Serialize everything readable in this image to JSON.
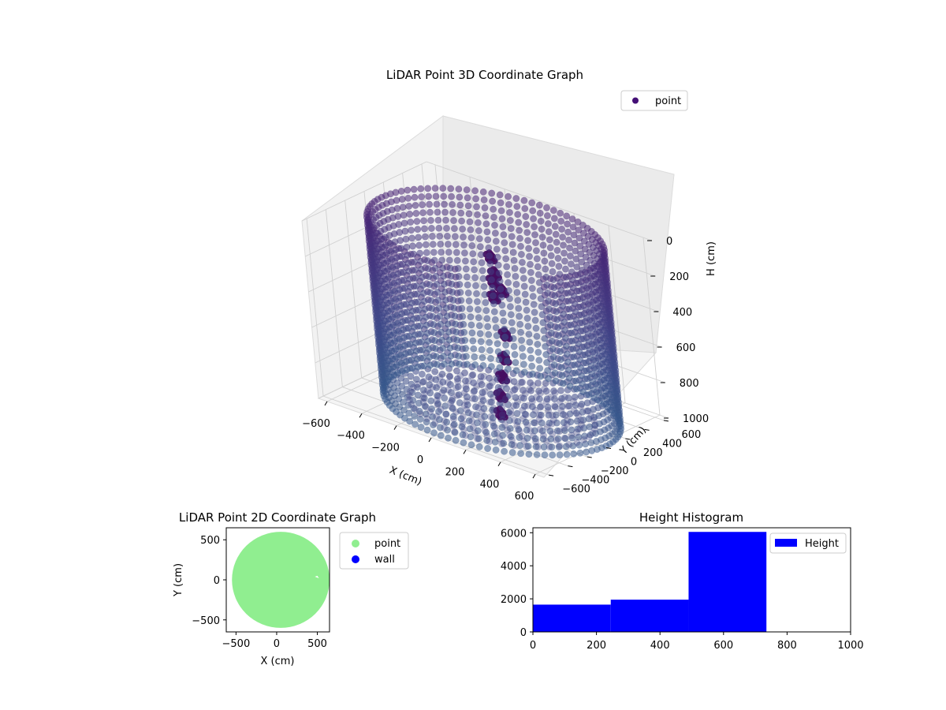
{
  "chart_data": [
    {
      "type": "scatter3d",
      "title": "LiDAR Point 3D Coordinate Graph",
      "xlabel": "X (cm)",
      "ylabel": "Y (cm)",
      "zlabel": "H (cm)",
      "xlim": [
        -650,
        650
      ],
      "ylim": [
        -650,
        650
      ],
      "zlim": [
        0,
        1000
      ],
      "z_inverted": true,
      "x_ticks": [
        -600,
        -400,
        -200,
        0,
        200,
        400,
        600
      ],
      "y_ticks": [
        -600,
        -400,
        -200,
        0,
        200,
        400,
        600
      ],
      "z_ticks": [
        0,
        200,
        400,
        600,
        800,
        1000
      ],
      "x_tick_labels": [
        "−600",
        "−400",
        "−200",
        "0",
        "200",
        "400",
        "600"
      ],
      "y_tick_labels": [
        "−600",
        "−400",
        "−200",
        "0",
        "200",
        "400",
        "600"
      ],
      "z_tick_labels": [
        "0",
        "200",
        "400",
        "600",
        "800",
        "1000"
      ],
      "grid": true,
      "legend": {
        "placement": "top-right",
        "entries": [
          {
            "name": "point",
            "color": "#440f76"
          }
        ]
      },
      "series": [
        {
          "name": "point",
          "colormap": "viridis",
          "shape": "cylinder",
          "center": [
            50,
            0
          ],
          "radius": 600,
          "height_range": [
            0,
            1000
          ],
          "opening_angle_deg": [
            -75,
            -35
          ]
        }
      ]
    },
    {
      "type": "scatter",
      "title": "LiDAR Point 2D Coordinate Graph",
      "xlabel": "X (cm)",
      "ylabel": "Y (cm)",
      "xlim": [
        -620,
        650
      ],
      "ylim": [
        -650,
        650
      ],
      "x_ticks": [
        -500,
        0,
        500
      ],
      "y_ticks": [
        -500,
        0,
        500
      ],
      "x_tick_labels": [
        "−500",
        "0",
        "500"
      ],
      "y_tick_labels": [
        "−500",
        "0",
        "500"
      ],
      "legend": {
        "placement": "outside-right",
        "entries": [
          {
            "name": "point",
            "color": "#90ee90"
          },
          {
            "name": "wall",
            "color": "#0000ff"
          }
        ]
      },
      "series": [
        {
          "name": "point",
          "color": "#90ee90",
          "shape": "disc",
          "center": [
            50,
            0
          ],
          "radius": 600
        },
        {
          "name": "wall",
          "color": "#0000ff",
          "points": []
        }
      ]
    },
    {
      "type": "histogram",
      "title": "Height Histogram",
      "xlim": [
        0,
        1000
      ],
      "ylim": [
        0,
        6300
      ],
      "x_ticks": [
        0,
        200,
        400,
        600,
        800,
        1000
      ],
      "y_ticks": [
        0,
        2000,
        4000,
        6000
      ],
      "legend": {
        "placement": "top-right",
        "entries": [
          {
            "name": "Height",
            "color": "#0000ff"
          }
        ]
      },
      "series": [
        {
          "name": "Height",
          "color": "#0000ff",
          "bins": [
            {
              "x0": 0,
              "x1": 245,
              "count": 1650
            },
            {
              "x0": 245,
              "x1": 490,
              "count": 1950
            },
            {
              "x0": 490,
              "x1": 735,
              "count": 6050
            },
            {
              "x0": 735,
              "x1": 980,
              "count": 0
            }
          ]
        }
      ]
    }
  ]
}
